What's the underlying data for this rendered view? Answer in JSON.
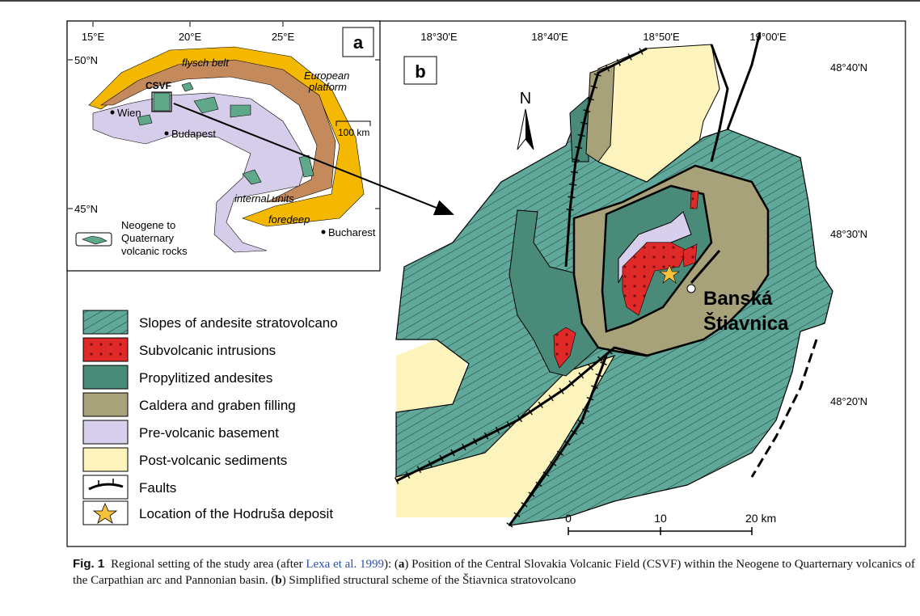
{
  "panel_a": {
    "label": "a",
    "lon_labels": [
      "15°E",
      "20°E",
      "25°E"
    ],
    "lat_labels": [
      "50°N",
      "45°N"
    ],
    "flysch": "flysch belt",
    "platform": [
      "European",
      "platform"
    ],
    "csvf": "CSVF",
    "wien": "Wien",
    "budapest": "Budapest",
    "scale": "100 km",
    "internal": "internal units",
    "foredeep": "foredeep",
    "bucharest": "Bucharest",
    "legend": [
      "Neogene to",
      "Quaternary",
      "volcanic rocks"
    ]
  },
  "panel_b": {
    "label": "b",
    "lon_labels": [
      "18°30'E",
      "18°40'E",
      "18°50'E",
      "19°00'E"
    ],
    "lat_labels": [
      "48°40'N",
      "48°30'N",
      "48°20'N"
    ],
    "north": "N",
    "town": [
      "Banská",
      "Štiavnica"
    ],
    "scale": [
      "0",
      "10",
      "20 km"
    ]
  },
  "legend": [
    "Slopes of andesite stratovolcano",
    "Subvolcanic intrusions",
    "Propylitized andesites",
    "Caldera and graben filling",
    "Pre-volcanic basement",
    "Post-volcanic sediments",
    "Faults",
    "Location of the Hodruša deposit"
  ],
  "caption": {
    "label": "Fig. 1",
    "parts": [
      "Regional setting of the study area (after ",
      "Lexa et al. 1999",
      "): (",
      "a",
      ") Position of the Central Slovakia Volcanic Field (CSVF) within the Neogene to Quarternary volcanics of the Carpathian arc and Pannonian basin. (",
      "b",
      ") Simplified structural scheme of the Štiavnica stratovolcano"
    ]
  }
}
